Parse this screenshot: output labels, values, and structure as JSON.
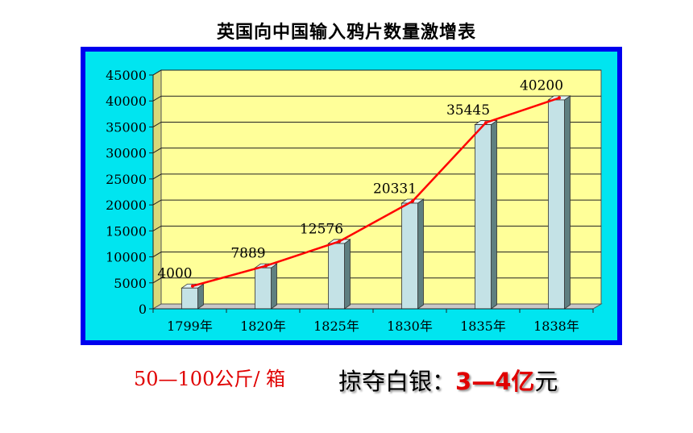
{
  "title": "英国向中国输入鸦片数量激增表",
  "chart_data": {
    "type": "bar",
    "title": "英国向中国输入鸦片数量激增表",
    "categories": [
      "1799年",
      "1820年",
      "1825年",
      "1830年",
      "1835年",
      "1838年"
    ],
    "series": [
      {
        "values": [
          4000,
          7889,
          12576,
          20331,
          35445,
          40200
        ]
      }
    ],
    "data_labels": [
      "4000",
      "7889",
      "12576",
      "20331",
      "35445",
      "40200"
    ],
    "ylim": [
      0,
      45000
    ],
    "yticks": [
      0,
      5000,
      10000,
      15000,
      20000,
      25000,
      30000,
      35000,
      40000,
      45000
    ],
    "ytick_labels": [
      "0",
      "5000",
      "10000",
      "15000",
      "20000",
      "25000",
      "30000",
      "35000",
      "40000",
      "45000"
    ],
    "grid": true,
    "trend_line": true,
    "colors": {
      "plot_background": "#ffff99",
      "chart_background": "#00e5f0",
      "frame_border": "#0000ee",
      "bar_front": "#c4e2e6",
      "bar_top": "#e0f2f4",
      "bar_side": "#5f7f80",
      "trend_line": "#ff0000"
    }
  },
  "captions": {
    "left": "50—100公斤/ 箱",
    "right_prefix": "掠夺白银：",
    "right_value": "3—4亿",
    "right_unit": "元"
  }
}
